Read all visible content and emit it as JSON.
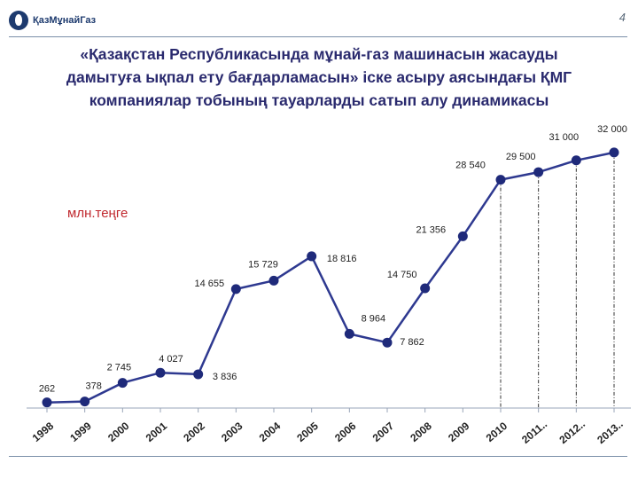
{
  "header": {
    "logo_text": "ҚазМұнайГаз",
    "page_number": "4"
  },
  "title_lines": [
    "«Қазақстан Республикасында мұнай-газ машинасын жасауды",
    "дамытуға ықпал ету бағдарламасын» іске асыру аясындағы ҚМГ",
    "компаниялар тобының тауарларды сатып алу динамикасы"
  ],
  "colors": {
    "line": "#2e3990",
    "marker": "#1f2a7a",
    "unit_label": "#c0282e",
    "title": "#2a2a6e"
  },
  "chart_data": {
    "type": "line",
    "unit_label": "млн.теңге",
    "categories": [
      "1998",
      "1999",
      "2000",
      "2001",
      "2002",
      "2003",
      "2004",
      "2005",
      "2006",
      "2007",
      "2008",
      "2009",
      "2010",
      "2011..",
      "2012..",
      "2013.."
    ],
    "values": [
      262,
      378,
      2745,
      4027,
      3836,
      14655,
      15729,
      18816,
      8964,
      7862,
      14750,
      21356,
      28540,
      29500,
      31000,
      32000
    ],
    "value_labels": [
      "262",
      "378",
      "2 745",
      "4 027",
      "3 836",
      "14 655",
      "15 729",
      "18 816",
      "8 964",
      "7 862",
      "14 750",
      "21 356",
      "28 540",
      "29 500",
      "31 000",
      "32 000"
    ],
    "dashed_drop_lines_from": [
      "2010",
      "2011..",
      "2012..",
      "2013.."
    ],
    "ylim": [
      0,
      33000
    ],
    "grid": false,
    "legend": "none"
  }
}
